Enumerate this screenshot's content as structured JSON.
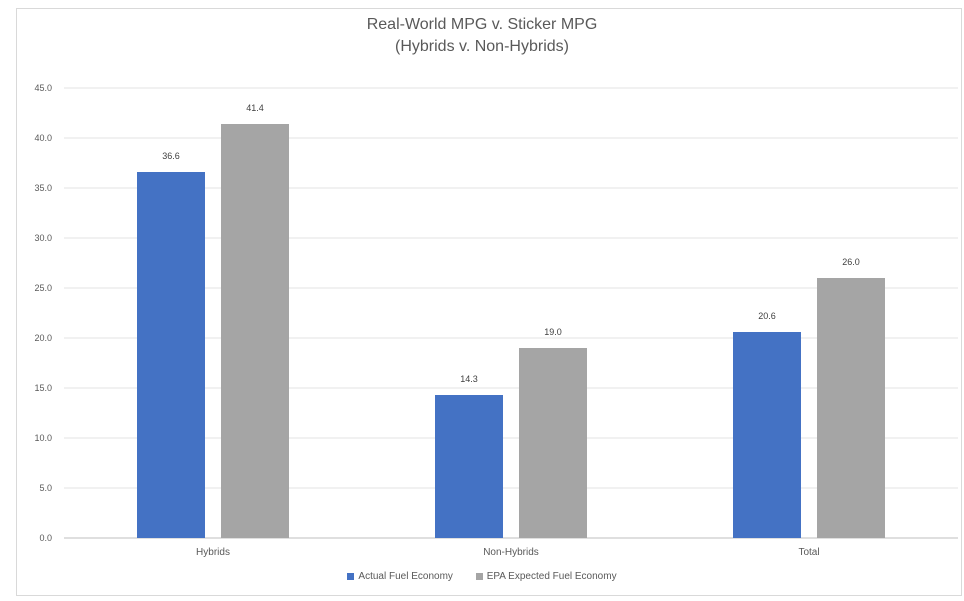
{
  "chart_data": {
    "type": "bar",
    "title": "Real-World MPG v. Sticker MPG",
    "subtitle": "(Hybrids v. Non-Hybrids)",
    "categories": [
      "Hybrids",
      "Non-Hybrids",
      "Total"
    ],
    "series": [
      {
        "name": "Actual Fuel Economy",
        "color": "#4472c4",
        "values": [
          36.6,
          14.3,
          20.6
        ],
        "labels": [
          "36.6",
          "14.3",
          "20.6"
        ]
      },
      {
        "name": "EPA Expected Fuel Economy",
        "color": "#a5a5a5",
        "values": [
          41.4,
          19.0,
          26.0
        ],
        "labels": [
          "41.4",
          "19.0",
          "26.0"
        ]
      }
    ],
    "ylim": [
      0,
      45
    ],
    "yticks": [
      "0.0",
      "5.0",
      "10.0",
      "15.0",
      "20.0",
      "25.0",
      "30.0",
      "35.0",
      "40.0",
      "45.0"
    ],
    "grid": true,
    "legend_position": "bottom"
  }
}
